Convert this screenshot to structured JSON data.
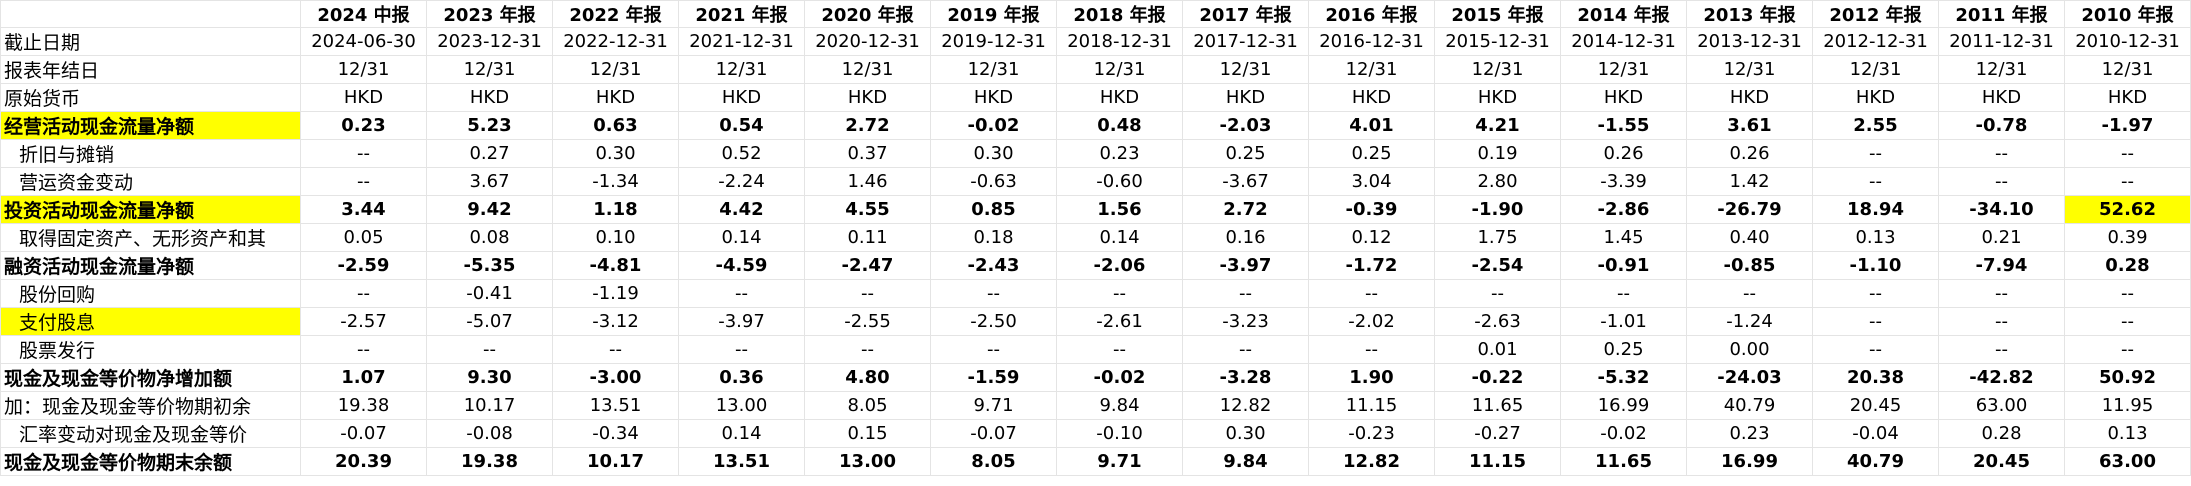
{
  "years": [
    "2024 中报",
    "2023 年报",
    "2022 年报",
    "2021 年报",
    "2020 年报",
    "2019 年报",
    "2018 年报",
    "2017 年报",
    "2016 年报",
    "2015 年报",
    "2014 年报",
    "2013 年报",
    "2012 年报",
    "2011 年报",
    "2010 年报"
  ],
  "rows": [
    {
      "label": "截止日期",
      "values": [
        "2024-06-30",
        "2023-12-31",
        "2022-12-31",
        "2021-12-31",
        "2020-12-31",
        "2019-12-31",
        "2018-12-31",
        "2017-12-31",
        "2016-12-31",
        "2015-12-31",
        "2014-12-31",
        "2013-12-31",
        "2012-12-31",
        "2011-12-31",
        "2010-12-31"
      ]
    },
    {
      "label": "报表年结日",
      "values": [
        "12/31",
        "12/31",
        "12/31",
        "12/31",
        "12/31",
        "12/31",
        "12/31",
        "12/31",
        "12/31",
        "12/31",
        "12/31",
        "12/31",
        "12/31",
        "12/31",
        "12/31"
      ]
    },
    {
      "label": "原始货币",
      "values": [
        "HKD",
        "HKD",
        "HKD",
        "HKD",
        "HKD",
        "HKD",
        "HKD",
        "HKD",
        "HKD",
        "HKD",
        "HKD",
        "HKD",
        "HKD",
        "HKD",
        "HKD"
      ]
    },
    {
      "label": "经营活动现金流量净额",
      "values": [
        "0.23",
        "5.23",
        "0.63",
        "0.54",
        "2.72",
        "-0.02",
        "0.48",
        "-2.03",
        "4.01",
        "4.21",
        "-1.55",
        "3.61",
        "2.55",
        "-0.78",
        "-1.97"
      ]
    },
    {
      "label": "折旧与摊销",
      "values": [
        "--",
        "0.27",
        "0.30",
        "0.52",
        "0.37",
        "0.30",
        "0.23",
        "0.25",
        "0.25",
        "0.19",
        "0.26",
        "0.26",
        "--",
        "--",
        "--"
      ]
    },
    {
      "label": "营运资金变动",
      "values": [
        "--",
        "3.67",
        "-1.34",
        "-2.24",
        "1.46",
        "-0.63",
        "-0.60",
        "-3.67",
        "3.04",
        "2.80",
        "-3.39",
        "1.42",
        "--",
        "--",
        "--"
      ]
    },
    {
      "label": "投资活动现金流量净额",
      "values": [
        "3.44",
        "9.42",
        "1.18",
        "4.42",
        "4.55",
        "0.85",
        "1.56",
        "2.72",
        "-0.39",
        "-1.90",
        "-2.86",
        "-26.79",
        "18.94",
        "-34.10",
        "52.62"
      ]
    },
    {
      "label": "取得固定资产、无形资产和其",
      "values": [
        "0.05",
        "0.08",
        "0.10",
        "0.14",
        "0.11",
        "0.18",
        "0.14",
        "0.16",
        "0.12",
        "1.75",
        "1.45",
        "0.40",
        "0.13",
        "0.21",
        "0.39"
      ]
    },
    {
      "label": "融资活动现金流量净额",
      "values": [
        "-2.59",
        "-5.35",
        "-4.81",
        "-4.59",
        "-2.47",
        "-2.43",
        "-2.06",
        "-3.97",
        "-1.72",
        "-2.54",
        "-0.91",
        "-0.85",
        "-1.10",
        "-7.94",
        "0.28"
      ]
    },
    {
      "label": "股份回购",
      "values": [
        "--",
        "-0.41",
        "-1.19",
        "--",
        "--",
        "--",
        "--",
        "--",
        "--",
        "--",
        "--",
        "--",
        "--",
        "--",
        "--"
      ]
    },
    {
      "label": "支付股息",
      "values": [
        "-2.57",
        "-5.07",
        "-3.12",
        "-3.97",
        "-2.55",
        "-2.50",
        "-2.61",
        "-3.23",
        "-2.02",
        "-2.63",
        "-1.01",
        "-1.24",
        "--",
        "--",
        "--"
      ]
    },
    {
      "label": "股票发行",
      "values": [
        "--",
        "--",
        "--",
        "--",
        "--",
        "--",
        "--",
        "--",
        "--",
        "0.01",
        "0.25",
        "0.00",
        "--",
        "--",
        "--"
      ]
    },
    {
      "label": "现金及现金等价物净增加额",
      "values": [
        "1.07",
        "9.30",
        "-3.00",
        "0.36",
        "4.80",
        "-1.59",
        "-0.02",
        "-3.28",
        "1.90",
        "-0.22",
        "-5.32",
        "-24.03",
        "20.38",
        "-42.82",
        "50.92"
      ]
    },
    {
      "label": "加：现金及现金等价物期初余",
      "values": [
        "19.38",
        "10.17",
        "13.51",
        "13.00",
        "8.05",
        "9.71",
        "9.84",
        "12.82",
        "11.15",
        "11.65",
        "16.99",
        "40.79",
        "20.45",
        "63.00",
        "11.95"
      ]
    },
    {
      "label": "汇率变动对现金及现金等价",
      "values": [
        "-0.07",
        "-0.08",
        "-0.34",
        "0.14",
        "0.15",
        "-0.07",
        "-0.10",
        "0.30",
        "-0.23",
        "-0.27",
        "-0.02",
        "0.23",
        "-0.04",
        "0.28",
        "0.13"
      ]
    },
    {
      "label": "现金及现金等价物期末余额",
      "values": [
        "20.39",
        "19.38",
        "10.17",
        "13.51",
        "13.00",
        "8.05",
        "9.71",
        "9.84",
        "12.82",
        "11.15",
        "11.65",
        "16.99",
        "40.79",
        "20.45",
        "63.00"
      ]
    }
  ],
  "highlight_color": "#ffff00"
}
